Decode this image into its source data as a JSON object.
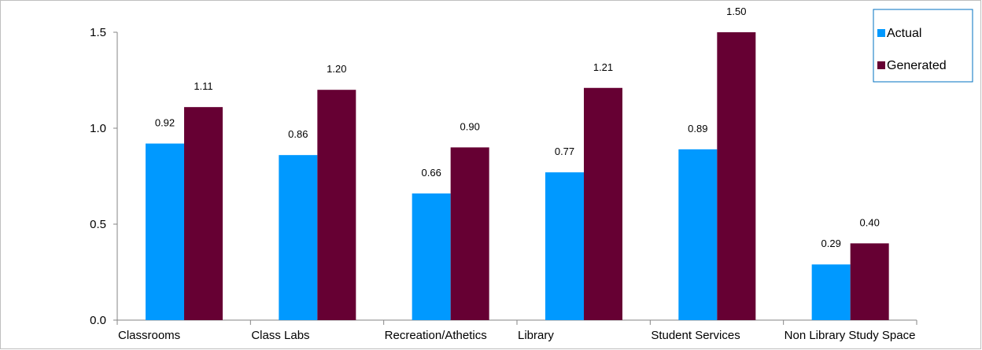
{
  "chart_data": {
    "type": "bar",
    "title": "",
    "xlabel": "",
    "ylabel": "",
    "categories": [
      "Classrooms",
      "Class Labs",
      "Recreation/Athetics",
      "Library",
      "Student Services",
      "Non Library Study Space"
    ],
    "series": [
      {
        "name": "Actual",
        "color": "#0099ff",
        "values": [
          0.92,
          0.86,
          0.66,
          0.77,
          0.89,
          0.29
        ],
        "labels": [
          "0.92",
          "0.86",
          "0.66",
          "0.77",
          "0.89",
          "0.29"
        ]
      },
      {
        "name": "Generated",
        "color": "#660033",
        "values": [
          1.11,
          1.2,
          0.9,
          1.21,
          1.5,
          0.4
        ],
        "labels": [
          "1.11",
          "1.20",
          "0.90",
          "1.21",
          "1.50",
          "0.40"
        ]
      }
    ],
    "ylim": [
      0,
      1.5
    ],
    "yticks": [
      "0.0",
      "0.5",
      "1.0",
      "1.5"
    ],
    "grid": false,
    "legend_position": "top-right"
  }
}
